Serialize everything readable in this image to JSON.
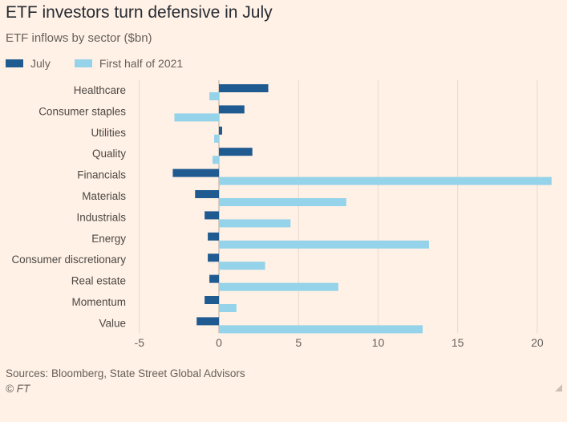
{
  "title": "ETF investors turn defensive in July",
  "subtitle": "ETF inflows by sector ($bn)",
  "legend": [
    {
      "label": "July",
      "color": "#1F5A91"
    },
    {
      "label": "First half of 2021",
      "color": "#94D3EA"
    }
  ],
  "footer": {
    "source": "Sources: Bloomberg, State Street Global Advisors",
    "copyright": "© FT"
  },
  "colors": {
    "background": "#FFF1E5",
    "gridline": "#E6D9CE",
    "zero_line": "#B3A9A0"
  },
  "chart_data": {
    "type": "bar",
    "orientation": "horizontal",
    "title": "ETF investors turn defensive in July",
    "subtitle": "ETF inflows by sector ($bn)",
    "xlabel": "",
    "ylabel": "",
    "xlim": [
      -5,
      21
    ],
    "xticks": [
      -5,
      0,
      5,
      10,
      15,
      20
    ],
    "grid": "vertical",
    "legend_position": "top-left",
    "categories": [
      "Healthcare",
      "Consumer staples",
      "Utilities",
      "Quality",
      "Financials",
      "Materials",
      "Industrials",
      "Energy",
      "Consumer discretionary",
      "Real estate",
      "Momentum",
      "Value"
    ],
    "series": [
      {
        "name": "July",
        "color": "#1F5A91",
        "values": [
          3.1,
          1.6,
          0.2,
          2.1,
          -2.9,
          -1.5,
          -0.9,
          -0.7,
          -0.7,
          -0.6,
          -0.9,
          -1.4
        ]
      },
      {
        "name": "First half of 2021",
        "color": "#94D3EA",
        "values": [
          -0.6,
          -2.8,
          -0.3,
          -0.4,
          20.9,
          8.0,
          4.5,
          13.2,
          2.9,
          7.5,
          1.1,
          12.8
        ]
      }
    ]
  }
}
